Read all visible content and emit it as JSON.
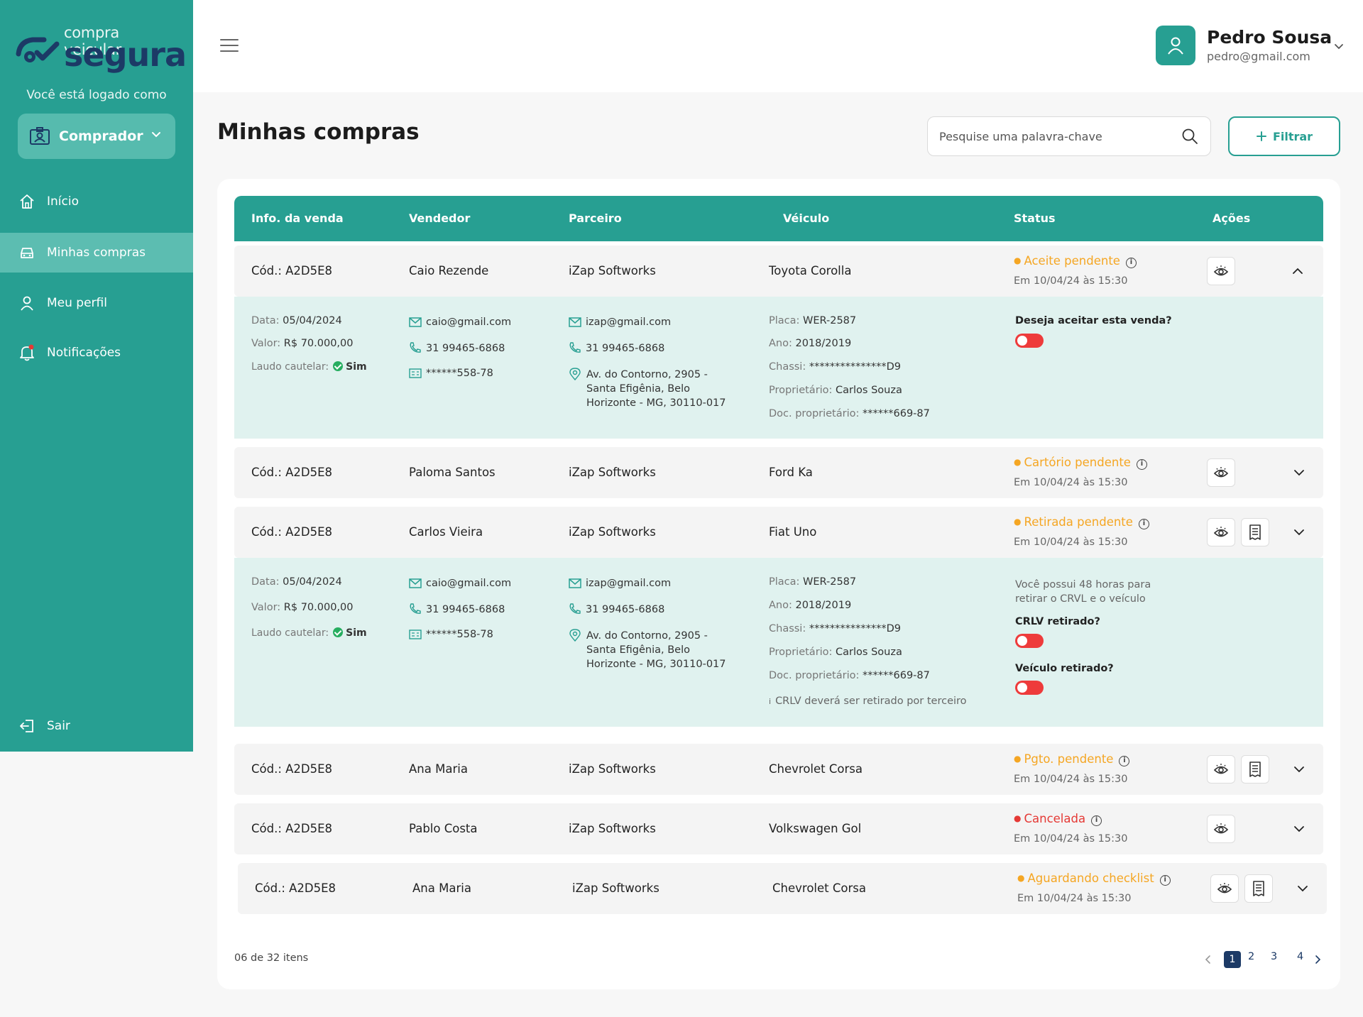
{
  "brand": {
    "line1": "compra veicular",
    "line2": "segura"
  },
  "sidebar": {
    "logged_as": "Você está logado como",
    "role": "Comprador",
    "items": [
      {
        "label": "Início",
        "icon": "home-icon"
      },
      {
        "label": "Minhas compras",
        "icon": "car-icon"
      },
      {
        "label": "Meu perfil",
        "icon": "user-icon"
      },
      {
        "label": "Notificações",
        "icon": "bell-icon"
      }
    ],
    "logout": "Sair"
  },
  "user": {
    "name": "Pedro Sousa",
    "email": "pedro@gmail.com"
  },
  "page": {
    "title": "Minhas compras"
  },
  "search": {
    "placeholder": "Pesquise uma palavra-chave"
  },
  "filter_label": "Filtrar",
  "table": {
    "headers": [
      "Info. da venda",
      "Vendedor",
      "Parceiro",
      "Véiculo",
      "Status",
      "Ações"
    ],
    "rows": [
      {
        "code": "Cód.: A2D5E8",
        "seller": "Caio Rezende",
        "partner": "iZap Softworks",
        "vehicle": "Toyota Corolla",
        "status": "Aceite pendente",
        "status_color": "#f5a623",
        "date": "Em 10/04/24 às 15:30"
      },
      {
        "code": "Cód.: A2D5E8",
        "seller": "Paloma Santos",
        "partner": "iZap Softworks",
        "vehicle": "Ford Ka",
        "status": "Cartório pendente",
        "status_color": "#f5a623",
        "date": "Em 10/04/24 às 15:30"
      },
      {
        "code": "Cód.: A2D5E8",
        "seller": "Carlos Vieira",
        "partner": "iZap Softworks",
        "vehicle": "Fiat Uno",
        "status": "Retirada pendente",
        "status_color": "#f5a623",
        "date": "Em 10/04/24 às 15:30"
      },
      {
        "code": "Cód.: A2D5E8",
        "seller": "Ana Maria",
        "partner": "iZap Softworks",
        "vehicle": "Chevrolet Corsa",
        "status": "Pgto. pendente",
        "status_color": "#f5a623",
        "date": "Em 10/04/24 às 15:30"
      },
      {
        "code": "Cód.: A2D5E8",
        "seller": "Pablo Costa",
        "partner": "iZap Softworks",
        "vehicle": "Volkswagen Gol",
        "status": "Cancelada",
        "status_color": "#e53935",
        "date": "Em 10/04/24 às 15:30"
      },
      {
        "code": "Cód.: A2D5E8",
        "seller": "Ana Maria",
        "partner": "iZap Softworks",
        "vehicle": "Chevrolet Corsa",
        "status": "Aguardando checklist",
        "status_color": "#f5a623",
        "date": "Em 10/04/24 às 15:30"
      }
    ]
  },
  "detail": {
    "date_k": "Data:",
    "date_v": "05/04/2024",
    "value_k": "Valor:",
    "value_v": "R$ 70.000,00",
    "report_k": "Laudo cautelar:",
    "report_v": "Sim",
    "seller_email": "caio@gmail.com",
    "seller_phone": "31 99465-6868",
    "seller_doc": "******558-78",
    "partner_email": "izap@gmail.com",
    "partner_phone": "31 99465-6868",
    "partner_addr_1": "Av. do Contorno, 2905 -",
    "partner_addr_2": "Santa Efigênia, Belo",
    "partner_addr_3": "Horizonte - MG, 30110-017",
    "plate_k": "Placa:",
    "plate_v": "WER-2587",
    "year_k": "Ano:",
    "year_v": "2018/2019",
    "chassis_k": "Chassi:",
    "chassis_v": "***************D9",
    "owner_k": "Proprietário:",
    "owner_v": "Carlos Souza",
    "ownerdoc_k": "Doc. proprietário:",
    "ownerdoc_v": "******669-87",
    "accept_q": "Deseja aceitar esta venda?",
    "notice_1": "Você possui 48 horas para",
    "notice_2": "retirar o CRVL  e o veículo",
    "crlv_q": "CRLV retirado?",
    "vehicle_q": "Veículo retirado?",
    "crlv_note": "CRLV deverá ser retirado por terceiro"
  },
  "pagination": {
    "info": "06 de 32 itens",
    "pages": [
      "1",
      "2",
      "3",
      "4"
    ],
    "current": "1"
  }
}
